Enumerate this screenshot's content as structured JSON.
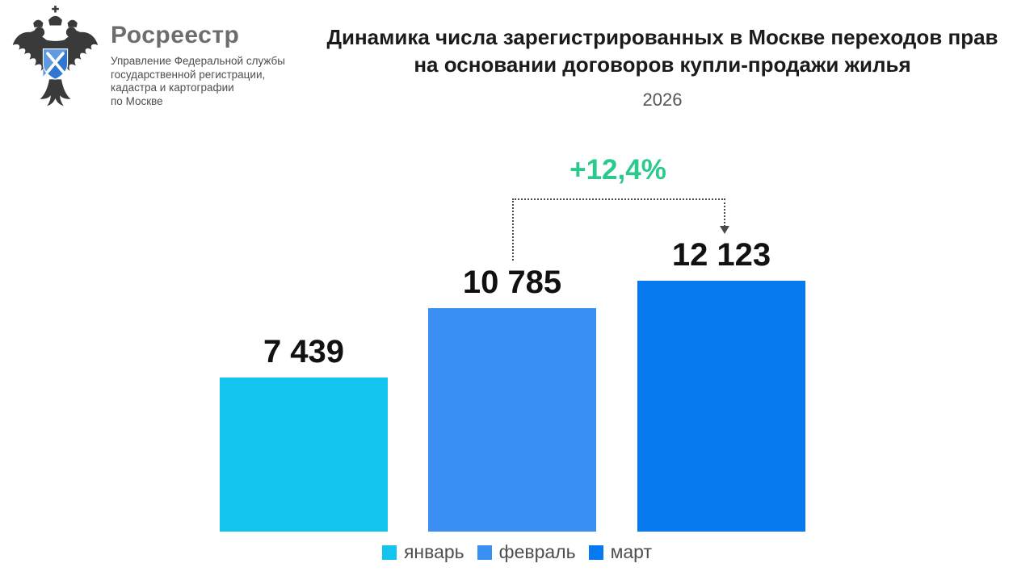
{
  "brand": {
    "name": "Росреестр",
    "org_lines": [
      "Управление Федеральной службы",
      "государственной регистрации,",
      "кадастра и картографии",
      "по Москве"
    ]
  },
  "header": {
    "title_line1": "Динамика числа зарегистрированных в Москве переходов прав",
    "title_line2": "на основании договоров купли-продажи жилья",
    "year": "2026"
  },
  "chart_data": {
    "type": "bar",
    "title": "Динамика числа зарегистрированных в Москве переходов прав на основании договоров купли-продажи жилья",
    "subtitle": "2026",
    "categories": [
      "январь",
      "февраль",
      "март"
    ],
    "values": [
      7439,
      10785,
      12123
    ],
    "values_display": [
      "7 439",
      "10 785",
      "12 123"
    ],
    "colors": [
      "#13c5ee",
      "#3a8ff2",
      "#077af2"
    ],
    "ylim": [
      0,
      12123
    ],
    "grid": false,
    "legend_position": "bottom",
    "annotation": {
      "text": "+12,4%",
      "color": "#2bc98c",
      "from_category": "февраль",
      "to_category": "март"
    }
  }
}
